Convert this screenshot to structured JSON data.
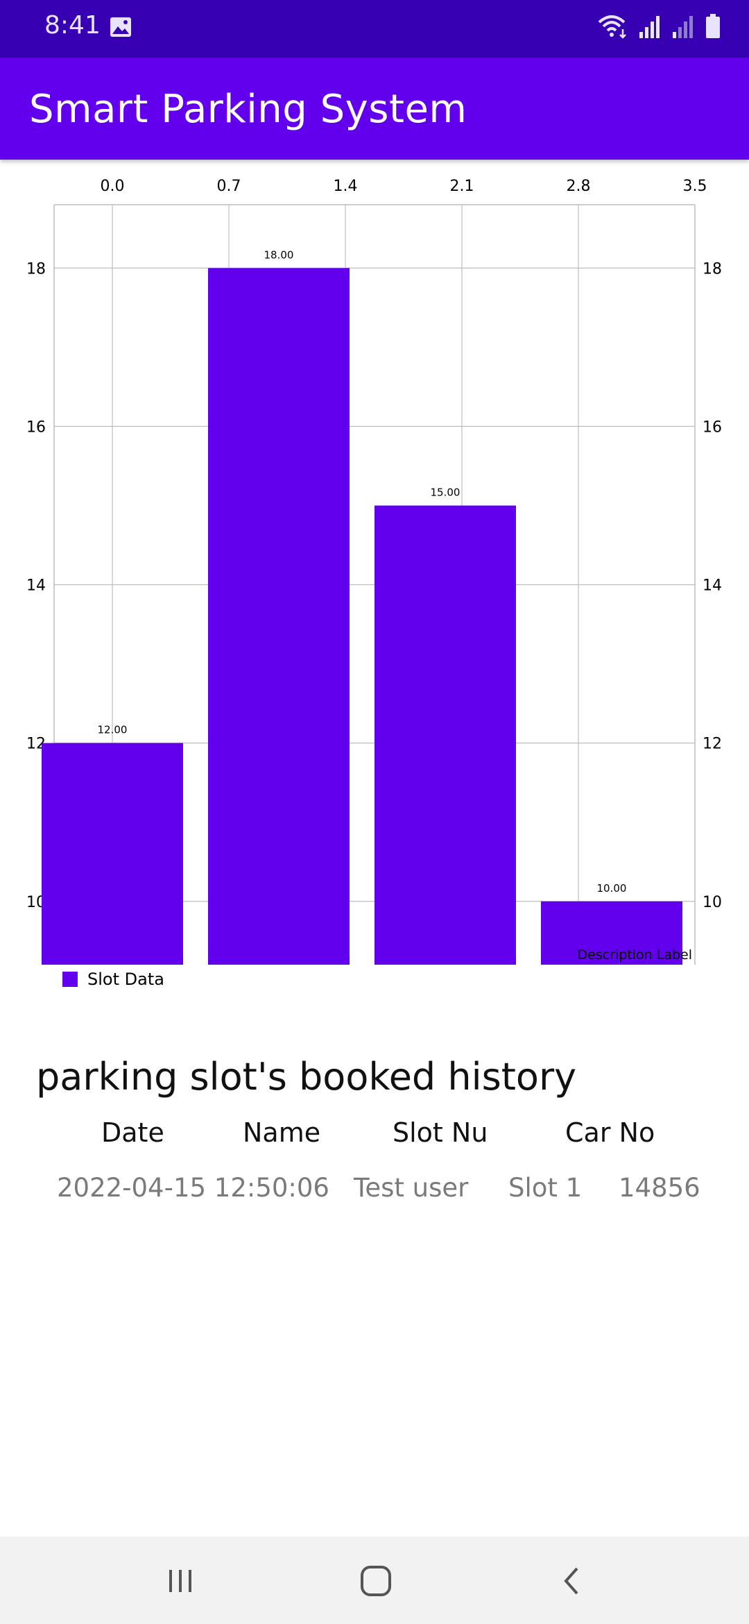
{
  "status_bar": {
    "time": "8:41",
    "icons": [
      "image-icon",
      "wifi-icon",
      "signal-icon",
      "signal-weak-icon",
      "battery-icon"
    ]
  },
  "app_bar": {
    "title": "Smart Parking System"
  },
  "colors": {
    "status_bar": "#3700b3",
    "app_bar": "#6200ee",
    "bar": "#6200ee",
    "grid": "#bdbdbd"
  },
  "chart_data": {
    "type": "bar",
    "x_top_ticks": [
      "0.0",
      "0.7",
      "1.4",
      "2.1",
      "2.8",
      "3.5"
    ],
    "y_ticks": [
      "10",
      "12",
      "14",
      "16",
      "18"
    ],
    "values": [
      12,
      18,
      15,
      10
    ],
    "value_labels": [
      "12.00",
      "18.00",
      "15.00",
      "10.00"
    ],
    "ylim": [
      9.2,
      18.8
    ],
    "xlim": [
      -0.35,
      3.5
    ],
    "description": "Description Label",
    "legend": {
      "label": "Slot Data",
      "placement": "bottom-left"
    },
    "grid": true
  },
  "history": {
    "title": "parking slot's booked history",
    "columns": [
      "Date",
      "Name",
      "Slot Nu",
      "Car No"
    ],
    "rows": [
      {
        "date": "2022-04-15 12:50:06",
        "name": "Test user",
        "slot": "Slot 1",
        "car": "14856"
      }
    ]
  },
  "nav": {
    "buttons": [
      "recent-apps-icon",
      "home-icon",
      "back-icon"
    ]
  }
}
